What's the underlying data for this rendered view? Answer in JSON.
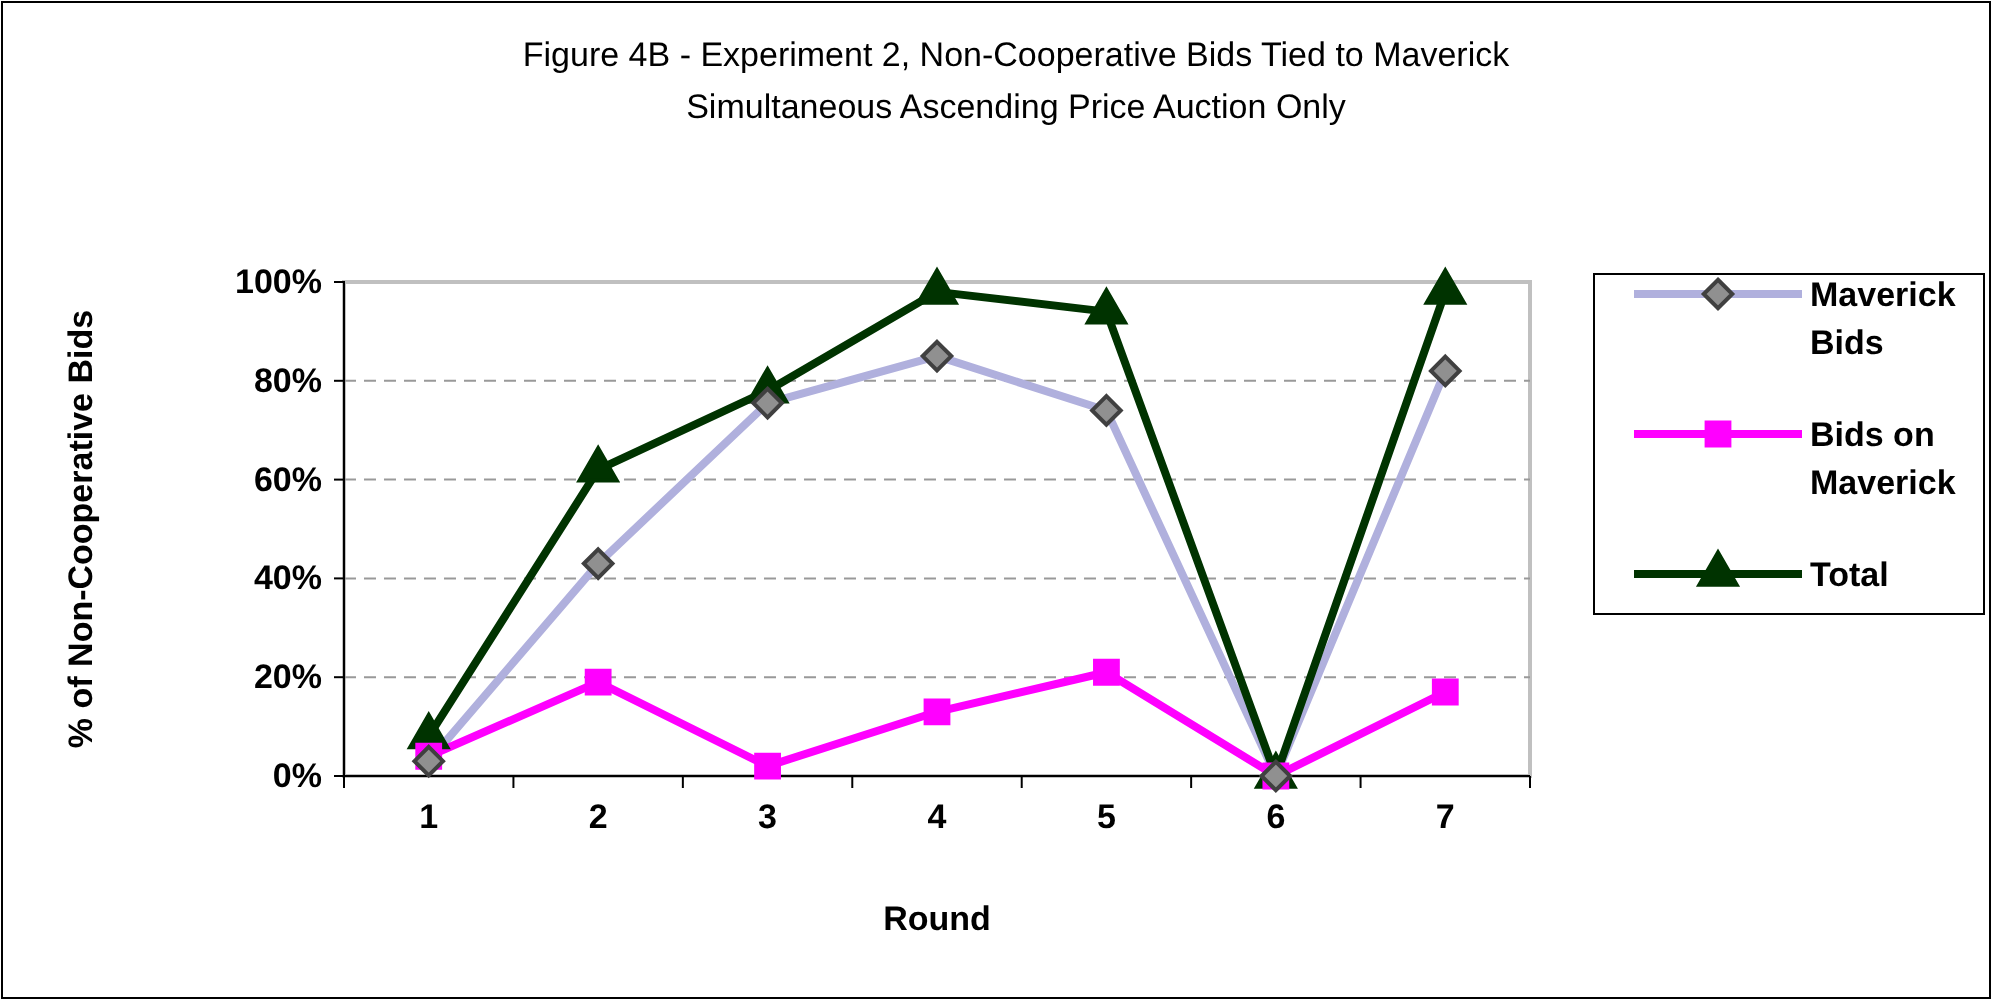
{
  "chart_data": {
    "type": "line",
    "title": "Figure 4B - Experiment 2, Non-Cooperative Bids Tied to Maverick",
    "subtitle": "Simultaneous Ascending Price Auction Only",
    "xlabel": "Round",
    "ylabel": "% of Non-Cooperative Bids",
    "categories": [
      "1",
      "2",
      "3",
      "4",
      "5",
      "6",
      "7"
    ],
    "series": [
      {
        "name": "Maverick Bids",
        "color": "#b0b0dd",
        "marker": "diamond",
        "values": [
          0.03,
          0.43,
          0.755,
          0.85,
          0.74,
          0,
          0.82
        ]
      },
      {
        "name": "Bids on Maverick",
        "color": "#ff00ff",
        "marker": "square",
        "values": [
          0.04,
          0.19,
          0.02,
          0.13,
          0.21,
          0,
          0.17
        ]
      },
      {
        "name": "Total",
        "color": "#003300",
        "marker": "triangle",
        "values": [
          0.08,
          0.62,
          0.78,
          0.98,
          0.94,
          0,
          0.98
        ]
      }
    ],
    "ylim": [
      0,
      1
    ],
    "yticks": [
      {
        "value": 0,
        "label": "0%"
      },
      {
        "value": 0.2,
        "label": "20%"
      },
      {
        "value": 0.4,
        "label": "40%"
      },
      {
        "value": 0.6,
        "label": "60%"
      },
      {
        "value": 0.8,
        "label": "80%"
      },
      {
        "value": 1,
        "label": "100%"
      }
    ],
    "grid": "y",
    "legend": "right"
  }
}
